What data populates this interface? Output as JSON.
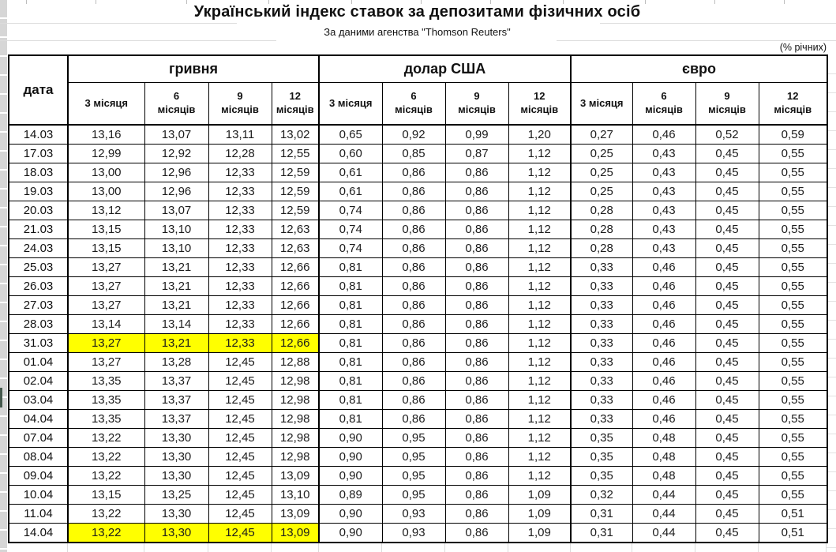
{
  "title": "Український індекс ставок за депозитами фізичних осіб",
  "subtitle": "За даними агенства \"Thomson Reuters\"",
  "units_note": "(% річних)",
  "colors": {
    "highlight": "#ffff00",
    "border": "#000000",
    "row_header_strip": "#d6d6d6",
    "gridline": "#dcdcdc",
    "text": "#111111"
  },
  "table": {
    "date_header": "дата",
    "groups": [
      {
        "label": "гривня"
      },
      {
        "label": "долар США"
      },
      {
        "label": "євро"
      }
    ],
    "tenor_headers": [
      "3 місяця",
      "6 місяців",
      "9 місяців",
      "12 місяців"
    ],
    "rows": [
      {
        "date": "14.03",
        "uah": [
          "13,16",
          "13,07",
          "13,11",
          "13,02"
        ],
        "usd": [
          "0,65",
          "0,92",
          "0,99",
          "1,20"
        ],
        "eur": [
          "0,27",
          "0,46",
          "0,52",
          "0,59"
        ],
        "uah_highlight": false
      },
      {
        "date": "17.03",
        "uah": [
          "12,99",
          "12,92",
          "12,28",
          "12,55"
        ],
        "usd": [
          "0,60",
          "0,85",
          "0,87",
          "1,12"
        ],
        "eur": [
          "0,25",
          "0,43",
          "0,45",
          "0,55"
        ],
        "uah_highlight": false
      },
      {
        "date": "18.03",
        "uah": [
          "13,00",
          "12,96",
          "12,33",
          "12,59"
        ],
        "usd": [
          "0,61",
          "0,86",
          "0,86",
          "1,12"
        ],
        "eur": [
          "0,25",
          "0,43",
          "0,45",
          "0,55"
        ],
        "uah_highlight": false
      },
      {
        "date": "19.03",
        "uah": [
          "13,00",
          "12,96",
          "12,33",
          "12,59"
        ],
        "usd": [
          "0,61",
          "0,86",
          "0,86",
          "1,12"
        ],
        "eur": [
          "0,25",
          "0,43",
          "0,45",
          "0,55"
        ],
        "uah_highlight": false
      },
      {
        "date": "20.03",
        "uah": [
          "13,12",
          "13,07",
          "12,33",
          "12,59"
        ],
        "usd": [
          "0,74",
          "0,86",
          "0,86",
          "1,12"
        ],
        "eur": [
          "0,28",
          "0,43",
          "0,45",
          "0,55"
        ],
        "uah_highlight": false
      },
      {
        "date": "21.03",
        "uah": [
          "13,15",
          "13,10",
          "12,33",
          "12,63"
        ],
        "usd": [
          "0,74",
          "0,86",
          "0,86",
          "1,12"
        ],
        "eur": [
          "0,28",
          "0,43",
          "0,45",
          "0,55"
        ],
        "uah_highlight": false
      },
      {
        "date": "24.03",
        "uah": [
          "13,15",
          "13,10",
          "12,33",
          "12,63"
        ],
        "usd": [
          "0,74",
          "0,86",
          "0,86",
          "1,12"
        ],
        "eur": [
          "0,28",
          "0,43",
          "0,45",
          "0,55"
        ],
        "uah_highlight": false
      },
      {
        "date": "25.03",
        "uah": [
          "13,27",
          "13,21",
          "12,33",
          "12,66"
        ],
        "usd": [
          "0,81",
          "0,86",
          "0,86",
          "1,12"
        ],
        "eur": [
          "0,33",
          "0,46",
          "0,45",
          "0,55"
        ],
        "uah_highlight": false
      },
      {
        "date": "26.03",
        "uah": [
          "13,27",
          "13,21",
          "12,33",
          "12,66"
        ],
        "usd": [
          "0,81",
          "0,86",
          "0,86",
          "1,12"
        ],
        "eur": [
          "0,33",
          "0,46",
          "0,45",
          "0,55"
        ],
        "uah_highlight": false
      },
      {
        "date": "27.03",
        "uah": [
          "13,27",
          "13,21",
          "12,33",
          "12,66"
        ],
        "usd": [
          "0,81",
          "0,86",
          "0,86",
          "1,12"
        ],
        "eur": [
          "0,33",
          "0,46",
          "0,45",
          "0,55"
        ],
        "uah_highlight": false
      },
      {
        "date": "28.03",
        "uah": [
          "13,14",
          "13,14",
          "12,33",
          "12,66"
        ],
        "usd": [
          "0,81",
          "0,86",
          "0,86",
          "1,12"
        ],
        "eur": [
          "0,33",
          "0,46",
          "0,45",
          "0,55"
        ],
        "uah_highlight": false
      },
      {
        "date": "31.03",
        "uah": [
          "13,27",
          "13,21",
          "12,33",
          "12,66"
        ],
        "usd": [
          "0,81",
          "0,86",
          "0,86",
          "1,12"
        ],
        "eur": [
          "0,33",
          "0,46",
          "0,45",
          "0,55"
        ],
        "uah_highlight": true
      },
      {
        "date": "01.04",
        "uah": [
          "13,27",
          "13,28",
          "12,45",
          "12,88"
        ],
        "usd": [
          "0,81",
          "0,86",
          "0,86",
          "1,12"
        ],
        "eur": [
          "0,33",
          "0,46",
          "0,45",
          "0,55"
        ],
        "uah_highlight": false
      },
      {
        "date": "02.04",
        "uah": [
          "13,35",
          "13,37",
          "12,45",
          "12,98"
        ],
        "usd": [
          "0,81",
          "0,86",
          "0,86",
          "1,12"
        ],
        "eur": [
          "0,33",
          "0,46",
          "0,45",
          "0,55"
        ],
        "uah_highlight": false
      },
      {
        "date": "03.04",
        "uah": [
          "13,35",
          "13,37",
          "12,45",
          "12,98"
        ],
        "usd": [
          "0,81",
          "0,86",
          "0,86",
          "1,12"
        ],
        "eur": [
          "0,33",
          "0,46",
          "0,45",
          "0,55"
        ],
        "uah_highlight": false
      },
      {
        "date": "04.04",
        "uah": [
          "13,35",
          "13,37",
          "12,45",
          "12,98"
        ],
        "usd": [
          "0,81",
          "0,86",
          "0,86",
          "1,12"
        ],
        "eur": [
          "0,33",
          "0,46",
          "0,45",
          "0,55"
        ],
        "uah_highlight": false
      },
      {
        "date": "07.04",
        "uah": [
          "13,22",
          "13,30",
          "12,45",
          "12,98"
        ],
        "usd": [
          "0,90",
          "0,95",
          "0,86",
          "1,12"
        ],
        "eur": [
          "0,35",
          "0,48",
          "0,45",
          "0,55"
        ],
        "uah_highlight": false
      },
      {
        "date": "08.04",
        "uah": [
          "13,22",
          "13,30",
          "12,45",
          "12,98"
        ],
        "usd": [
          "0,90",
          "0,95",
          "0,86",
          "1,12"
        ],
        "eur": [
          "0,35",
          "0,48",
          "0,45",
          "0,55"
        ],
        "uah_highlight": false
      },
      {
        "date": "09.04",
        "uah": [
          "13,22",
          "13,30",
          "12,45",
          "13,09"
        ],
        "usd": [
          "0,90",
          "0,95",
          "0,86",
          "1,12"
        ],
        "eur": [
          "0,35",
          "0,48",
          "0,45",
          "0,55"
        ],
        "uah_highlight": false
      },
      {
        "date": "10.04",
        "uah": [
          "13,15",
          "13,25",
          "12,45",
          "13,10"
        ],
        "usd": [
          "0,89",
          "0,95",
          "0,86",
          "1,09"
        ],
        "eur": [
          "0,32",
          "0,44",
          "0,45",
          "0,55"
        ],
        "uah_highlight": false
      },
      {
        "date": "11.04",
        "uah": [
          "13,22",
          "13,30",
          "12,45",
          "13,09"
        ],
        "usd": [
          "0,90",
          "0,93",
          "0,86",
          "1,09"
        ],
        "eur": [
          "0,31",
          "0,44",
          "0,45",
          "0,51"
        ],
        "uah_highlight": false
      },
      {
        "date": "14.04",
        "uah": [
          "13,22",
          "13,30",
          "12,45",
          "13,09"
        ],
        "usd": [
          "0,90",
          "0,93",
          "0,86",
          "1,09"
        ],
        "eur": [
          "0,31",
          "0,44",
          "0,45",
          "0,51"
        ],
        "uah_highlight": true
      }
    ]
  }
}
